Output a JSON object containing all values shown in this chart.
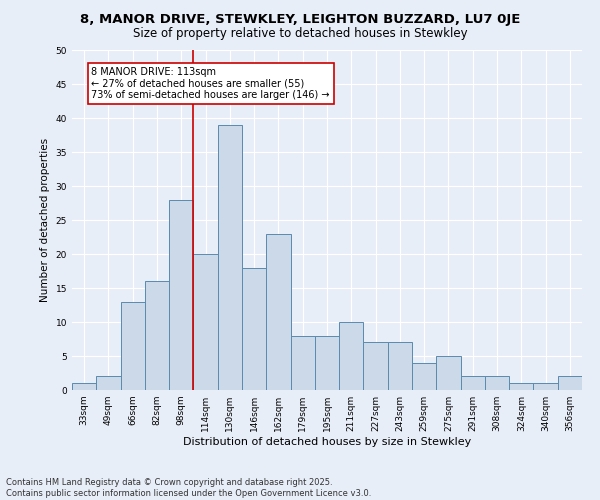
{
  "title": "8, MANOR DRIVE, STEWKLEY, LEIGHTON BUZZARD, LU7 0JE",
  "subtitle": "Size of property relative to detached houses in Stewkley",
  "xlabel": "Distribution of detached houses by size in Stewkley",
  "ylabel": "Number of detached properties",
  "bar_labels": [
    "33sqm",
    "49sqm",
    "66sqm",
    "82sqm",
    "98sqm",
    "114sqm",
    "130sqm",
    "146sqm",
    "162sqm",
    "179sqm",
    "195sqm",
    "211sqm",
    "227sqm",
    "243sqm",
    "259sqm",
    "275sqm",
    "291sqm",
    "308sqm",
    "324sqm",
    "340sqm",
    "356sqm"
  ],
  "bar_values": [
    1,
    2,
    13,
    16,
    28,
    20,
    39,
    18,
    23,
    8,
    8,
    10,
    7,
    7,
    4,
    5,
    2,
    2,
    1,
    1,
    2
  ],
  "bar_color": "#ccd9e8",
  "bar_edge_color": "#5a8ab0",
  "background_color": "#e8eef8",
  "grid_color": "#ffffff",
  "annotation_box_color": "#cc0000",
  "annotation_line1": "8 MANOR DRIVE: 113sqm",
  "annotation_line2": "← 27% of detached houses are smaller (55)",
  "annotation_line3": "73% of semi-detached houses are larger (146) →",
  "property_line_x": 4.5,
  "ylim": [
    0,
    50
  ],
  "yticks": [
    0,
    5,
    10,
    15,
    20,
    25,
    30,
    35,
    40,
    45,
    50
  ],
  "footer": "Contains HM Land Registry data © Crown copyright and database right 2025.\nContains public sector information licensed under the Open Government Licence v3.0.",
  "title_fontsize": 9.5,
  "subtitle_fontsize": 8.5,
  "xlabel_fontsize": 8,
  "ylabel_fontsize": 7.5,
  "tick_fontsize": 6.5,
  "annotation_fontsize": 7,
  "footer_fontsize": 6
}
